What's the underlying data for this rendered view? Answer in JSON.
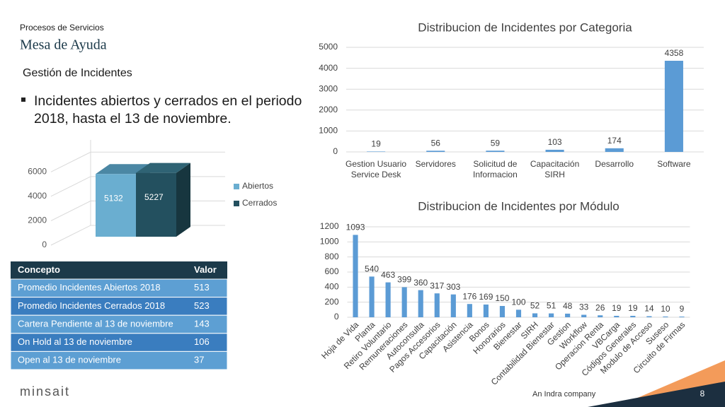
{
  "header": {
    "subtitle": "Procesos de Servicios",
    "title": "Mesa de Ayuda",
    "section": "Gestión de Incidentes"
  },
  "bullet": "Incidentes abiertos y cerrados en el periodo 2018, hasta el 13 de noviembre.",
  "table": {
    "columns": [
      "Concepto",
      "Valor"
    ],
    "rows": [
      [
        "Promedio Incidentes Abiertos 2018",
        513
      ],
      [
        "Promedio Incidentes Cerrados 2018",
        523
      ],
      [
        "Cartera Pendiente al 13 de noviembre",
        143
      ],
      [
        "On Hold al 13 de noviembre",
        106
      ],
      [
        "Open al 13 de noviembre",
        37
      ]
    ]
  },
  "footer": {
    "logo": "minsait",
    "company": "An Indra company",
    "page": "8"
  },
  "chart_data": [
    {
      "type": "bar3d",
      "series": [
        {
          "name": "Abiertos",
          "color": "#6aaed0",
          "values": [
            5132
          ]
        },
        {
          "name": "Cerrados",
          "color": "#23505f",
          "values": [
            5227
          ]
        }
      ],
      "ylim": [
        0,
        7000
      ],
      "yticks": [
        0,
        2000,
        4000,
        6000
      ],
      "grid": true,
      "legend": "right"
    },
    {
      "type": "bar",
      "title": "Distribucion de Incidentes por Categoria",
      "categories": [
        "Gestion Usuario Service Desk",
        "Servidores",
        "Solicitud de Informacion",
        "Capacitación SIRH",
        "Desarrollo",
        "Software"
      ],
      "values": [
        19,
        56,
        59,
        103,
        174,
        4358
      ],
      "color": "#5b9bd5",
      "ylim": [
        0,
        5000
      ],
      "yticks": [
        0,
        1000,
        2000,
        3000,
        4000,
        5000
      ],
      "grid": true
    },
    {
      "type": "bar",
      "title": "Distribucion de Incidentes por Módulo",
      "categories": [
        "Hoja de Vida",
        "Planta",
        "Retiro Voluntario",
        "Remuneraciones",
        "Autoconsulta",
        "Pagos Accesorios",
        "Capacitación",
        "Asistencia",
        "Bonos",
        "Honorarios",
        "Bienestar",
        "SIRH",
        "Contabilidad Bienestar",
        "Gestion",
        "Workflow",
        "Operacion Renta",
        "VBCarga",
        "Códigos Generales",
        "Modulo de Acceso",
        "Suseso",
        "Circuito de Firmas"
      ],
      "values": [
        1093,
        540,
        463,
        399,
        360,
        317,
        303,
        176,
        169,
        150,
        100,
        52,
        51,
        48,
        33,
        26,
        19,
        19,
        14,
        10,
        9
      ],
      "color": "#5b9bd5",
      "ylim": [
        0,
        1200
      ],
      "yticks": [
        0,
        200,
        400,
        600,
        800,
        1000,
        1200
      ],
      "grid": true,
      "rotate_labels": true
    }
  ]
}
